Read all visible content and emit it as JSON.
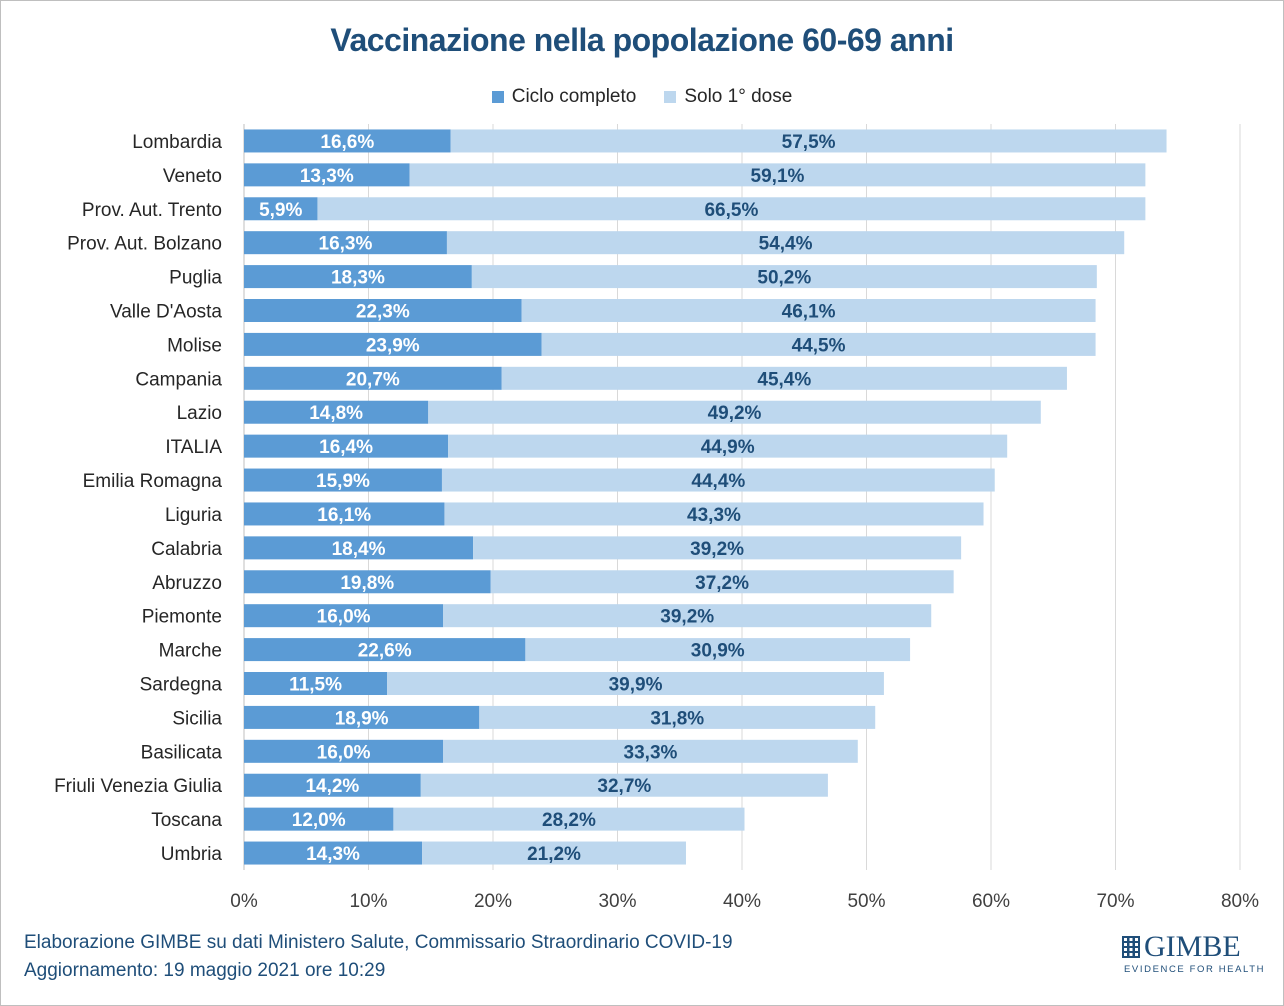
{
  "title": "Vaccinazione nella popolazione 60-69 anni",
  "legend": {
    "full_label": "Ciclo completo",
    "first_label": "Solo 1° dose"
  },
  "colors": {
    "full": "#5b9bd5",
    "first": "#bdd7ee",
    "title": "#1f4e79",
    "first_label": "#1f4e79",
    "grid": "#d9d9d9"
  },
  "footer": {
    "line1": "Elaborazione GIMBE su dati Ministero Salute, Commissario Straordinario COVID-19",
    "line2": "Aggiornamento: 19 maggio 2021 ore 10:29"
  },
  "logo": {
    "name": "GIMBE",
    "tagline": "EVIDENCE FOR HEALTH"
  },
  "chart_data": {
    "type": "bar",
    "orientation": "horizontal",
    "stacked": true,
    "title": "Vaccinazione nella popolazione 60-69 anni",
    "categories": [
      "Lombardia",
      "Veneto",
      "Prov. Aut. Trento",
      "Prov. Aut. Bolzano",
      "Puglia",
      "Valle D'Aosta",
      "Molise",
      "Campania",
      "Lazio",
      "ITALIA",
      "Emilia Romagna",
      "Liguria",
      "Calabria",
      "Abruzzo",
      "Piemonte",
      "Marche",
      "Sardegna",
      "Sicilia",
      "Basilicata",
      "Friuli Venezia Giulia",
      "Toscana",
      "Umbria"
    ],
    "series": [
      {
        "name": "Ciclo completo",
        "values": [
          16.6,
          13.3,
          5.9,
          16.3,
          18.3,
          22.3,
          23.9,
          20.7,
          14.8,
          16.4,
          15.9,
          16.1,
          18.4,
          19.8,
          16.0,
          22.6,
          11.5,
          18.9,
          16.0,
          14.2,
          12.0,
          14.3
        ],
        "labels": [
          "16,6%",
          "13,3%",
          "5,9%",
          "16,3%",
          "18,3%",
          "22,3%",
          "23,9%",
          "20,7%",
          "14,8%",
          "16,4%",
          "15,9%",
          "16,1%",
          "18,4%",
          "19,8%",
          "16,0%",
          "22,6%",
          "11,5%",
          "18,9%",
          "16,0%",
          "14,2%",
          "12,0%",
          "14,3%"
        ]
      },
      {
        "name": "Solo 1° dose",
        "values": [
          57.5,
          59.1,
          66.5,
          54.4,
          50.2,
          46.1,
          44.5,
          45.4,
          49.2,
          44.9,
          44.4,
          43.3,
          39.2,
          37.2,
          39.2,
          30.9,
          39.9,
          31.8,
          33.3,
          32.7,
          28.2,
          21.2
        ],
        "labels": [
          "57,5%",
          "59,1%",
          "66,5%",
          "54,4%",
          "50,2%",
          "46,1%",
          "44,5%",
          "45,4%",
          "49,2%",
          "44,9%",
          "44,4%",
          "43,3%",
          "39,2%",
          "37,2%",
          "39,2%",
          "30,9%",
          "39,9%",
          "31,8%",
          "33,3%",
          "32,7%",
          "28,2%",
          "21,2%"
        ]
      }
    ],
    "xlim": [
      0,
      80
    ],
    "xticks": [
      0,
      10,
      20,
      30,
      40,
      50,
      60,
      70,
      80
    ],
    "xtick_labels": [
      "0%",
      "10%",
      "20%",
      "30%",
      "40%",
      "50%",
      "60%",
      "70%",
      "80%"
    ],
    "grid": true,
    "legend_position": "top"
  }
}
